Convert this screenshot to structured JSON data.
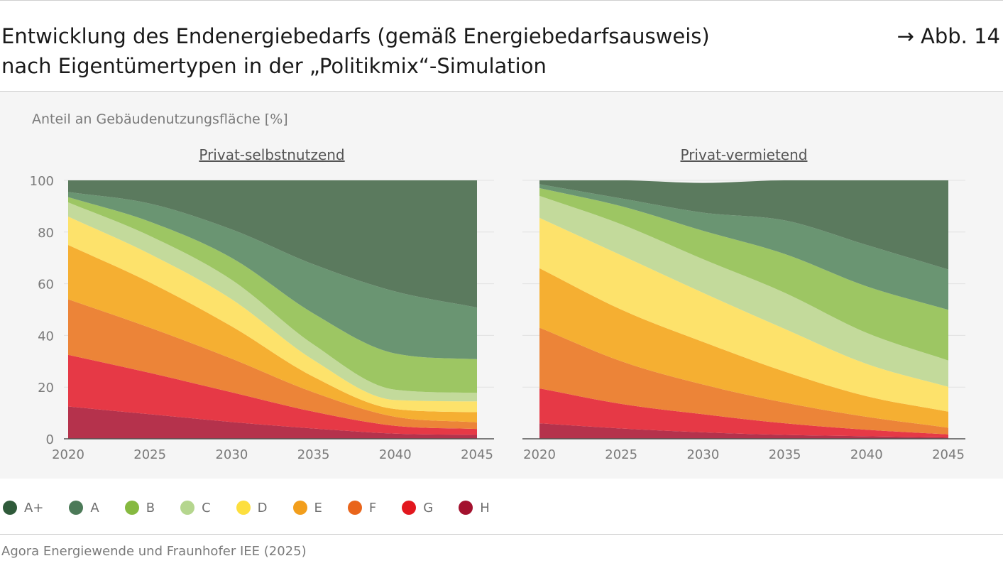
{
  "header": {
    "title_line1": "Entwicklung des Endenergiebedarfs (gemäß Energiebedarfsausweis)",
    "title_line2": "nach Eigentümertypen in der „Politikmix“-Simulation",
    "figure_ref": "→ Abb. 14"
  },
  "footer": {
    "source": "Agora Energiewende und Fraunhofer IEE (2025)"
  },
  "colors": {
    "H": "#b5324c",
    "G": "#e63946",
    "F": "#ec8438",
    "E": "#f5af32",
    "D": "#fde26b",
    "C": "#c3da9b",
    "B": "#9dc663",
    "A": "#6a9572",
    "A+": "#5b7a5e"
  },
  "legend": [
    {
      "label": "A+",
      "color": "#2f5a3a"
    },
    {
      "label": "A",
      "color": "#4c7a58"
    },
    {
      "label": "B",
      "color": "#86b940"
    },
    {
      "label": "C",
      "color": "#b5d68e"
    },
    {
      "label": "D",
      "color": "#fddf3e"
    },
    {
      "label": "E",
      "color": "#f29e1c"
    },
    {
      "label": "F",
      "color": "#e9651b"
    },
    {
      "label": "G",
      "color": "#e2171e"
    },
    {
      "label": "H",
      "color": "#a3112e"
    }
  ],
  "chart_data": {
    "type": "area",
    "stacked": true,
    "ylabel": "Anteil an Gebäudenutzungsfläche [%]",
    "ylim": [
      0,
      100
    ],
    "yticks": [
      0,
      20,
      40,
      60,
      80,
      100
    ],
    "xticks": [
      2020,
      2025,
      2030,
      2035,
      2040,
      2045
    ],
    "x": [
      2020,
      2025,
      2030,
      2035,
      2040,
      2045
    ],
    "grid": true,
    "legend_position": "bottom",
    "panels": [
      {
        "title": "Privat-selbstnutzend",
        "series": [
          {
            "name": "H",
            "values": [
              12.5,
              9.5,
              6.5,
              4,
              2,
              1.5
            ]
          },
          {
            "name": "G",
            "values": [
              20,
              16,
              11.5,
              6.5,
              3,
              2.3
            ]
          },
          {
            "name": "F",
            "values": [
              21.5,
              17.5,
              13,
              7.5,
              3.5,
              2.6
            ]
          },
          {
            "name": "E",
            "values": [
              21,
              17.5,
              12.5,
              6,
              3,
              3.9
            ]
          },
          {
            "name": "D",
            "values": [
              11,
              11,
              10.5,
              6.5,
              3.5,
              4.2
            ]
          },
          {
            "name": "C",
            "values": [
              5.5,
              7,
              7.5,
              6,
              4,
              3.3
            ]
          },
          {
            "name": "B",
            "values": [
              2,
              5.5,
              8.5,
              12,
              14,
              13
            ]
          },
          {
            "name": "A",
            "values": [
              2,
              7,
              11,
              19,
              24,
              20
            ]
          },
          {
            "name": "A+",
            "values": [
              4.5,
              9,
              19,
              32.5,
              43,
              49.2
            ]
          }
        ]
      },
      {
        "title": "Privat-vermietend",
        "series": [
          {
            "name": "H",
            "values": [
              6,
              4,
              2.5,
              1.5,
              1,
              0.5
            ]
          },
          {
            "name": "G",
            "values": [
              13.5,
              9.5,
              7,
              4.5,
              2.5,
              1.2
            ]
          },
          {
            "name": "F",
            "values": [
              23.5,
              16.5,
              11.5,
              8,
              5,
              2.6
            ]
          },
          {
            "name": "E",
            "values": [
              23,
              20,
              16.5,
              12,
              8,
              6.2
            ]
          },
          {
            "name": "D",
            "values": [
              19.5,
              21,
              19,
              16.5,
              12.5,
              9.6
            ]
          },
          {
            "name": "C",
            "values": [
              8.5,
              12,
              13,
              14,
              12,
              10.2
            ]
          },
          {
            "name": "B",
            "values": [
              3,
              7,
              11,
              15,
              18,
              19.6
            ]
          },
          {
            "name": "A",
            "values": [
              1.5,
              3,
              7,
              13,
              16,
              15.6
            ]
          },
          {
            "name": "A+",
            "values": [
              1.5,
              7,
              11.5,
              15.5,
              25,
              34.5
            ]
          }
        ]
      }
    ]
  }
}
